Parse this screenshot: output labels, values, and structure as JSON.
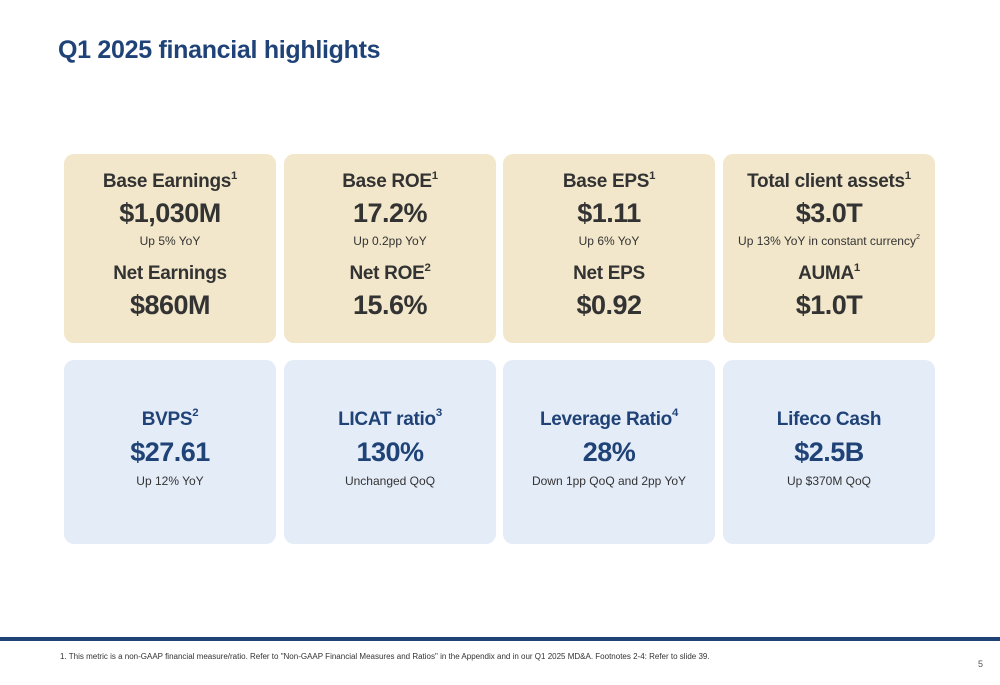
{
  "title": "Q1 2025 financial highlights",
  "top_cards": [
    {
      "label": "Base Earnings",
      "label_sup": "1",
      "value": "$1,030M",
      "note": "Up 5% YoY",
      "note_sup": "",
      "label2": "Net Earnings",
      "label2_sup": "",
      "value2": "$860M"
    },
    {
      "label": "Base ROE",
      "label_sup": "1",
      "value": "17.2%",
      "note": "Up 0.2pp YoY",
      "note_sup": "",
      "label2": "Net ROE",
      "label2_sup": "2",
      "value2": "15.6%"
    },
    {
      "label": "Base EPS",
      "label_sup": "1",
      "value": "$1.11",
      "note": "Up 6% YoY",
      "note_sup": "",
      "label2": "Net EPS",
      "label2_sup": "",
      "value2": "$0.92"
    },
    {
      "label": "Total client assets",
      "label_sup": "1",
      "value": "$3.0T",
      "note": "Up 13% YoY in constant currency",
      "note_sup": "2",
      "label2": "AUMA",
      "label2_sup": "1",
      "value2": "$1.0T"
    }
  ],
  "bottom_cards": [
    {
      "label": "BVPS",
      "label_sup": "2",
      "value": "$27.61",
      "note": "Up 12% YoY"
    },
    {
      "label": "LICAT ratio",
      "label_sup": "3",
      "value": "130%",
      "note": "Unchanged QoQ"
    },
    {
      "label": "Leverage Ratio",
      "label_sup": "4",
      "value": "28%",
      "note": "Down 1pp QoQ and 2pp YoY"
    },
    {
      "label": "Lifeco Cash",
      "label_sup": "",
      "value": "$2.5B",
      "note": "Up $370M QoQ"
    }
  ],
  "footnote": "1. This metric is a non-GAAP financial measure/ratio. Refer to \"Non-GAAP Financial Measures and Ratios\" in the Appendix and in our Q1 2025 MD&A. Footnotes 2-4: Refer to slide 39.",
  "page_number": "5",
  "colors": {
    "title": "#1f4277",
    "top_card_bg": "#f2e7ca",
    "bottom_card_bg": "#e4ecf8",
    "rule": "#1f4277"
  }
}
